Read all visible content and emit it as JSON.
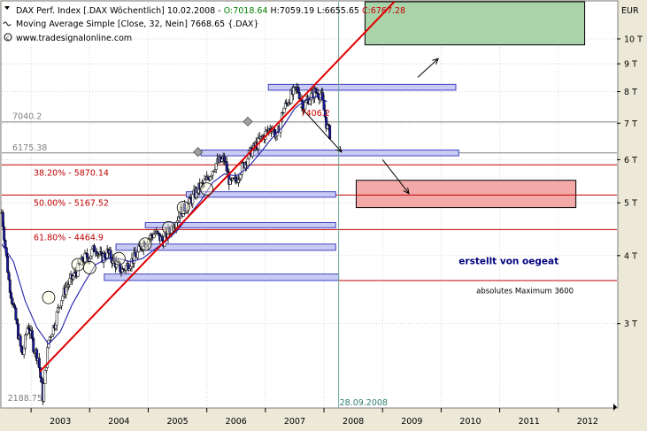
{
  "header": {
    "line1_instrument": "DAX Perf. Index [.DAX  Wöchentlich] 10.02.2008 - ",
    "line1_open": "O:7018.64",
    "line1_high": " H:7059.19",
    "line1_low": " L:6655.65",
    "line1_close": " C:6767.28",
    "line2": "Moving Average Simple [Close, 32, Nein] 7668.65 {.DAX}",
    "line3": "www.tradesignalonline.com"
  },
  "colors": {
    "open": "#008000",
    "high": "#000000",
    "low": "#000000",
    "close": "#CC0000",
    "trendline": "#E00000",
    "fib_line": "#C00000",
    "level_gray": "#808080",
    "channel_fill": "#C8CCF4",
    "channel_stroke": "#4040C0",
    "target_up": "#A9D3A9",
    "target_down": "#F4A9A9",
    "ma": "#2222AA",
    "vertical_marker": "#6FA89A",
    "annotation_blue": "#000080"
  },
  "chart_data": {
    "type": "candlestick",
    "currency_label": "EUR",
    "y_scale": "log",
    "ylim": [
      2100,
      11700
    ],
    "xlim": [
      2002.5,
      2013.0
    ],
    "y_ticks": [
      {
        "value": 3000,
        "label": "3 T"
      },
      {
        "value": 4000,
        "label": "4 T"
      },
      {
        "value": 5000,
        "label": "5 T"
      },
      {
        "value": 6000,
        "label": "6 T"
      },
      {
        "value": 7000,
        "label": "7 T"
      },
      {
        "value": 8000,
        "label": "8 T"
      },
      {
        "value": 9000,
        "label": "9 T"
      },
      {
        "value": 10000,
        "label": "10 T"
      }
    ],
    "x_ticks": [
      {
        "value": 2003.0,
        "label": "2003"
      },
      {
        "value": 2004.0,
        "label": "2004"
      },
      {
        "value": 2005.0,
        "label": "2005"
      },
      {
        "value": 2006.0,
        "label": "2006"
      },
      {
        "value": 2007.0,
        "label": "2007"
      },
      {
        "value": 2008.0,
        "label": "2008"
      },
      {
        "value": 2009.0,
        "label": "2009"
      },
      {
        "value": 2010.0,
        "label": "2010"
      },
      {
        "value": 2011.0,
        "label": "2011"
      },
      {
        "value": 2012.0,
        "label": "2012"
      }
    ],
    "price_path": [
      [
        2002.5,
        4800
      ],
      [
        2002.62,
        3600
      ],
      [
        2002.75,
        3000
      ],
      [
        2002.85,
        2600
      ],
      [
        2002.95,
        3000
      ],
      [
        2003.05,
        2700
      ],
      [
        2003.12,
        2600
      ],
      [
        2003.2,
        2200
      ],
      [
        2003.3,
        2800
      ],
      [
        2003.4,
        3000
      ],
      [
        2003.5,
        3300
      ],
      [
        2003.6,
        3500
      ],
      [
        2003.75,
        3700
      ],
      [
        2003.9,
        3950
      ],
      [
        2004.0,
        4000
      ],
      [
        2004.1,
        4150
      ],
      [
        2004.2,
        3950
      ],
      [
        2004.3,
        4050
      ],
      [
        2004.42,
        3900
      ],
      [
        2004.55,
        3750
      ],
      [
        2004.65,
        3850
      ],
      [
        2004.8,
        4000
      ],
      [
        2004.9,
        4200
      ],
      [
        2005.0,
        4300
      ],
      [
        2005.12,
        4400
      ],
      [
        2005.25,
        4250
      ],
      [
        2005.4,
        4500
      ],
      [
        2005.55,
        4800
      ],
      [
        2005.7,
        5000
      ],
      [
        2005.85,
        5300
      ],
      [
        2006.0,
        5500
      ],
      [
        2006.15,
        5900
      ],
      [
        2006.3,
        6000
      ],
      [
        2006.4,
        5400
      ],
      [
        2006.5,
        5500
      ],
      [
        2006.6,
        5800
      ],
      [
        2006.75,
        6200
      ],
      [
        2006.9,
        6500
      ],
      [
        2007.0,
        6700
      ],
      [
        2007.1,
        6900
      ],
      [
        2007.2,
        6600
      ],
      [
        2007.3,
        7400
      ],
      [
        2007.45,
        7900
      ],
      [
        2007.55,
        8100
      ],
      [
        2007.65,
        7500
      ],
      [
        2007.75,
        7800
      ],
      [
        2007.85,
        8000
      ],
      [
        2007.95,
        7900
      ],
      [
        2008.0,
        7400
      ],
      [
        2008.05,
        6900
      ],
      [
        2008.1,
        6700
      ]
    ],
    "moving_average": [
      [
        2002.5,
        4200
      ],
      [
        2002.7,
        3900
      ],
      [
        2002.9,
        3300
      ],
      [
        2003.1,
        2950
      ],
      [
        2003.3,
        2750
      ],
      [
        2003.5,
        2900
      ],
      [
        2003.7,
        3250
      ],
      [
        2003.9,
        3550
      ],
      [
        2004.1,
        3850
      ],
      [
        2004.3,
        3950
      ],
      [
        2004.5,
        3950
      ],
      [
        2004.7,
        3900
      ],
      [
        2004.9,
        3950
      ],
      [
        2005.1,
        4100
      ],
      [
        2005.3,
        4250
      ],
      [
        2005.5,
        4450
      ],
      [
        2005.7,
        4750
      ],
      [
        2005.9,
        5050
      ],
      [
        2006.1,
        5450
      ],
      [
        2006.3,
        5650
      ],
      [
        2006.5,
        5600
      ],
      [
        2006.7,
        5800
      ],
      [
        2006.9,
        6150
      ],
      [
        2007.1,
        6550
      ],
      [
        2007.3,
        6900
      ],
      [
        2007.5,
        7450
      ],
      [
        2007.7,
        7750
      ],
      [
        2007.9,
        7850
      ],
      [
        2008.05,
        7670
      ]
    ],
    "trendline": {
      "x1": 2003.15,
      "y1": 2450,
      "x2": 2009.2,
      "y2": 11700
    },
    "horizontal_levels": [
      {
        "label": "7040.2",
        "value": 7040.2,
        "kind": "gray"
      },
      {
        "label": "6175.38",
        "value": 6175.38,
        "kind": "gray"
      }
    ],
    "fib_levels": [
      {
        "label": "38.20% - 5870.14",
        "value": 5870.14
      },
      {
        "label": "50.00% - 5167.52",
        "value": 5167.52
      },
      {
        "label": "61.80% - 4464.9",
        "value": 4464.9
      }
    ],
    "channels": [
      {
        "x1": 2007.05,
        "x2": 2010.25,
        "lo": 8050,
        "hi": 8250
      },
      {
        "x1": 2005.9,
        "x2": 2010.3,
        "lo": 6100,
        "hi": 6250
      },
      {
        "x1": 2005.65,
        "x2": 2008.2,
        "lo": 5120,
        "hi": 5240
      },
      {
        "x1": 2004.95,
        "x2": 2008.2,
        "lo": 4500,
        "hi": 4600
      },
      {
        "x1": 2004.45,
        "x2": 2008.2,
        "lo": 4090,
        "hi": 4200
      },
      {
        "x1": 2004.25,
        "x2": 2008.25,
        "lo": 3600,
        "hi": 3700
      }
    ],
    "target_boxes": [
      {
        "kind": "up",
        "x1": 2008.7,
        "x2": 2012.45,
        "lo": 9750,
        "hi": 11700
      },
      {
        "kind": "down",
        "x1": 2008.55,
        "x2": 2012.3,
        "lo": 4900,
        "hi": 5500
      }
    ],
    "arrows": [
      {
        "x1": 2007.6,
        "y1": 7500,
        "x2": 2008.3,
        "y2": 6200
      },
      {
        "x1": 2009.0,
        "y1": 6000,
        "x2": 2009.45,
        "y2": 5200
      },
      {
        "x1": 2009.6,
        "y1": 8500,
        "x2": 2009.95,
        "y2": 9200
      }
    ],
    "circles": [
      [
        2003.3,
        3350
      ],
      [
        2003.8,
        3850
      ],
      [
        2004.0,
        3800
      ],
      [
        2004.5,
        3950
      ],
      [
        2004.95,
        4200
      ],
      [
        2005.35,
        4500
      ],
      [
        2005.6,
        4900
      ],
      [
        2006.0,
        5300
      ]
    ],
    "diamonds": [
      [
        2005.85,
        6200
      ],
      [
        2006.7,
        7050
      ]
    ],
    "vertical_marker": {
      "x": 2008.25,
      "label": "28.09.2008"
    },
    "annotations": [
      {
        "text": "7406.2",
        "x": 2007.6,
        "y": 7300,
        "kind": "price_red"
      },
      {
        "text": "2188.75",
        "x": 2002.6,
        "y": 2188.75,
        "kind": "gray"
      },
      {
        "text": "erstellt von oegeat",
        "x": 2010.3,
        "y": 3900,
        "kind": "blue_bold"
      },
      {
        "text": "absolutes Maximum 3600",
        "x": 2010.6,
        "y": 3450,
        "kind": "small"
      }
    ]
  }
}
